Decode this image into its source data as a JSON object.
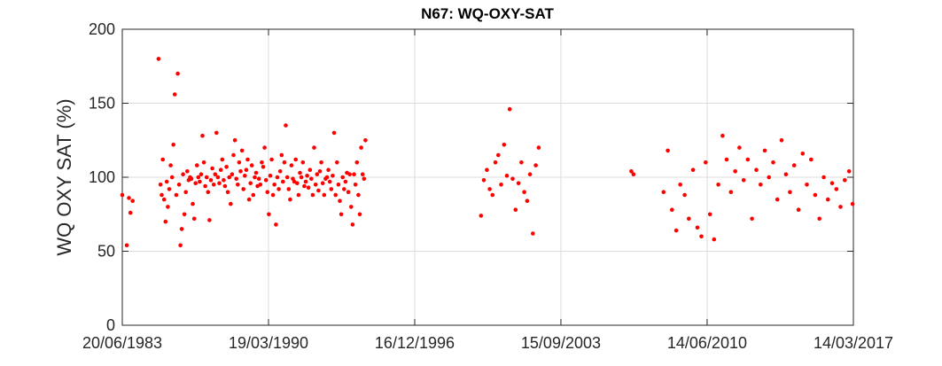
{
  "chart_data": {
    "type": "scatter",
    "title": "N67: WQ-OXY-SAT",
    "xlabel": "",
    "ylabel": "WQ OXY SAT (%)",
    "xlim": [
      "20/06/1983",
      "14/03/2017"
    ],
    "ylim": [
      0,
      200
    ],
    "x_ticks": [
      "20/06/1983",
      "19/03/1990",
      "16/12/1996",
      "15/09/2003",
      "14/06/2010",
      "14/03/2017"
    ],
    "y_ticks": [
      0,
      50,
      100,
      150,
      200
    ],
    "grid": true,
    "marker_color": "#ff0000",
    "series": [
      {
        "x": [
          "20/06/1983",
          "04/09/1983",
          "10/10/1983",
          "05/11/1983",
          "12/12/1983",
          "20/02/1985",
          "25/03/1985",
          "14/04/1985",
          "02/05/1985",
          "25/05/1985",
          "18/06/1985",
          "08/07/1985",
          "26/07/1985",
          "20/08/1985",
          "12/09/1985",
          "06/10/1985",
          "28/10/1985",
          "20/11/1985",
          "15/12/1985",
          "10/01/1986",
          "02/02/1986",
          "24/02/1986",
          "18/03/1986",
          "10/04/1986",
          "02/05/1986",
          "26/05/1986",
          "18/06/1986",
          "12/07/1986",
          "05/08/1986",
          "28/08/1986",
          "20/09/1986",
          "14/10/1986",
          "06/11/1986",
          "30/11/1986",
          "22/12/1986",
          "15/01/1987",
          "08/02/1987",
          "02/03/1987",
          "26/03/1987",
          "18/04/1987",
          "12/05/1987",
          "04/06/1987",
          "28/06/1987",
          "22/07/1987",
          "15/08/1987",
          "08/09/1987",
          "02/10/1987",
          "25/10/1987",
          "18/11/1987",
          "12/12/1987",
          "05/01/1988",
          "30/01/1988",
          "22/02/1988",
          "16/03/1988",
          "10/04/1988",
          "03/05/1988",
          "27/05/1988",
          "20/06/1988",
          "14/07/1988",
          "07/08/1988",
          "30/08/1988",
          "23/09/1988",
          "17/10/1988",
          "10/11/1988",
          "04/12/1988",
          "28/12/1988",
          "20/01/1989",
          "14/02/1989",
          "10/03/1989",
          "02/04/1989",
          "26/04/1989",
          "20/05/1989",
          "12/06/1989",
          "06/07/1989",
          "30/07/1989",
          "22/08/1989",
          "15/09/1989",
          "09/10/1989",
          "02/11/1989",
          "26/11/1989",
          "20/12/1989",
          "12/01/1990",
          "05/02/1990",
          "01/03/1990",
          "25/03/1990",
          "18/04/1990",
          "12/05/1990",
          "04/06/1990",
          "28/06/1990",
          "22/07/1990",
          "15/08/1990",
          "08/09/1990",
          "02/10/1990",
          "26/10/1990",
          "18/11/1990",
          "12/12/1990",
          "05/01/1991",
          "30/01/1991",
          "22/02/1991",
          "18/03/1991",
          "10/04/1991",
          "04/05/1991",
          "28/05/1991",
          "21/06/1991",
          "15/07/1991",
          "08/08/1991",
          "01/09/1991",
          "25/09/1991",
          "19/10/1991",
          "12/11/1991",
          "06/12/1991",
          "30/12/1991",
          "22/01/1992",
          "16/02/1992",
          "10/03/1992",
          "03/04/1992",
          "27/04/1992",
          "21/05/1992",
          "14/06/1992",
          "08/07/1992",
          "01/08/1992",
          "25/08/1992",
          "18/09/1992",
          "12/10/1992",
          "05/11/1992",
          "29/11/1992",
          "23/12/1992",
          "16/01/1993",
          "09/02/1993",
          "05/03/1993",
          "29/03/1993",
          "22/04/1993",
          "16/05/1993",
          "09/06/1993",
          "03/07/1993",
          "27/07/1993",
          "20/08/1993",
          "13/09/1993",
          "07/10/1993",
          "31/10/1993",
          "24/11/1993",
          "18/12/1993",
          "11/01/1994",
          "04/02/1994",
          "28/02/1994",
          "24/03/1994",
          "17/04/1994",
          "11/05/1994",
          "04/06/1994",
          "28/06/1994",
          "22/07/1994",
          "15/08/1994",
          "08/09/1994",
          "08/01/2000",
          "25/02/2000",
          "15/04/2000",
          "02/06/2000",
          "20/07/2000",
          "06/09/2000",
          "24/10/2000",
          "12/12/2000",
          "30/01/2001",
          "18/03/2001",
          "06/05/2001",
          "24/06/2001",
          "12/08/2001",
          "30/09/2001",
          "18/11/2001",
          "05/01/2002",
          "23/02/2002",
          "12/04/2002",
          "30/05/2002",
          "18/07/2002",
          "05/09/2002",
          "15/12/2006",
          "20/01/2007",
          "10/06/2008",
          "20/08/2008",
          "30/10/2008",
          "10/01/2009",
          "20/03/2009",
          "01/06/2009",
          "10/08/2009",
          "20/10/2009",
          "01/01/2010",
          "10/03/2010",
          "20/05/2010",
          "01/08/2010",
          "10/10/2010",
          "20/12/2010",
          "01/03/2011",
          "10/05/2011",
          "20/07/2011",
          "01/10/2011",
          "10/12/2011",
          "20/02/2012",
          "01/05/2012",
          "10/07/2012",
          "20/09/2012",
          "01/12/2012",
          "10/02/2013",
          "20/04/2013",
          "01/07/2013",
          "10/09/2013",
          "20/11/2013",
          "01/02/2014",
          "10/04/2014",
          "20/06/2014",
          "01/09/2014",
          "10/11/2014",
          "20/01/2015",
          "01/04/2015",
          "10/06/2015",
          "20/08/2015",
          "01/11/2015",
          "10/01/2016",
          "20/03/2016",
          "01/06/2016",
          "10/08/2016",
          "20/10/2016",
          "01/01/2017",
          "01/03/2017"
        ],
        "y": [
          88,
          54,
          86,
          76,
          84,
          180,
          95,
          88,
          112,
          85,
          70,
          97,
          80,
          92,
          108,
          100,
          122,
          156,
          88,
          170,
          95,
          54,
          65,
          102,
          75,
          90,
          104,
          98,
          100,
          99,
          82,
          72,
          96,
          108,
          100,
          97,
          102,
          128,
          110,
          94,
          100,
          90,
          71,
          98,
          106,
          95,
          102,
          130,
          100,
          96,
          105,
          112,
          98,
          94,
          107,
          90,
          100,
          82,
          102,
          115,
          125,
          99,
          95,
          110,
          104,
          118,
          92,
          101,
          105,
          112,
          85,
          96,
          108,
          88,
          100,
          103,
          94,
          99,
          95,
          110,
          107,
          120,
          98,
          90,
          75,
          101,
          112,
          88,
          95,
          68,
          100,
          92,
          104,
          115,
          97,
          110,
          135,
          100,
          92,
          85,
          108,
          99,
          97,
          112,
          96,
          88,
          103,
          100,
          110,
          94,
          97,
          101,
          93,
          105,
          99,
          88,
          120,
          95,
          102,
          91,
          104,
          110,
          96,
          88,
          99,
          100,
          105,
          97,
          92,
          101,
          130,
          88,
          110,
          95,
          84,
          75,
          100,
          92,
          97,
          103,
          90,
          102,
          80,
          68,
          102,
          95,
          110,
          88,
          75,
          120,
          102,
          99,
          125,
          74,
          98,
          105,
          92,
          88,
          110,
          115,
          95,
          122,
          101,
          146,
          99,
          78,
          96,
          110,
          90,
          84,
          102,
          62,
          108,
          120,
          104,
          102,
          90,
          118,
          78,
          64,
          95,
          88,
          72,
          105,
          66,
          60,
          110,
          75,
          58,
          95,
          128,
          112,
          90,
          104,
          120,
          98,
          112,
          72,
          105,
          95,
          118,
          100,
          110,
          85,
          125,
          102,
          90,
          108,
          78,
          116,
          95,
          112,
          88,
          72,
          100,
          85,
          96,
          92,
          80,
          98,
          104,
          82
        ]
      }
    ]
  }
}
